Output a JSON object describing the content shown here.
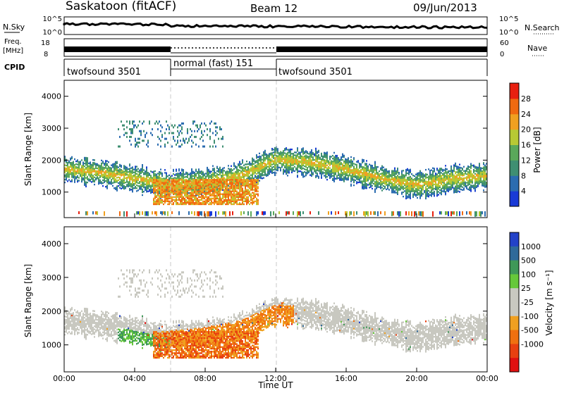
{
  "header": {
    "station": "Saskatoon (fitACF)",
    "beam": "Beam 12",
    "date": "09/Jun/2013"
  },
  "summary": {
    "left_labels": {
      "nsky": "N.Sky",
      "freq_line1": "Freq.",
      "freq_line2": "[MHz]",
      "cpid": "CPID"
    },
    "right_labels": {
      "nsearch": "N.Search",
      "nave": "Nave"
    },
    "nsky_ticks": [
      "10^5",
      "10^0"
    ],
    "nsearch_ticks": [
      "10^5",
      "10^0"
    ],
    "freq_ticks": [
      "18",
      "8"
    ],
    "nave_ticks": [
      "60",
      "0"
    ],
    "cpid_segments": [
      {
        "label": "twofsound 3501",
        "start_hour": 0,
        "end_hour": 6
      },
      {
        "label": "normal (fast) 151",
        "start_hour": 6,
        "end_hour": 12
      },
      {
        "label": "twofsound 3501",
        "start_hour": 12,
        "end_hour": 24
      }
    ]
  },
  "axes": {
    "ylabel": "Slant Range [km]",
    "xlabel": "Time UT",
    "x_ticks": [
      "00:00",
      "04:00",
      "08:00",
      "12:00",
      "16:00",
      "20:00",
      "00:00"
    ],
    "y_ticks": [
      "1000",
      "2000",
      "3000",
      "4000"
    ]
  },
  "colorbars": {
    "power": {
      "label": "Power [dB]",
      "ticks": [
        "4",
        "8",
        "12",
        "16",
        "20",
        "24",
        "28"
      ]
    },
    "velocity": {
      "label": "Velocity [m s⁻¹]",
      "ticks": [
        "1000",
        "500",
        "100",
        "25",
        "-25",
        "-100",
        "-500",
        "-1000"
      ]
    }
  },
  "colors": {
    "power_scale": [
      "#1a3ad6",
      "#2b6cb0",
      "#3f8f72",
      "#5aa85a",
      "#b7c934",
      "#f0a020",
      "#f06a10",
      "#e82010"
    ],
    "velocity_scale": [
      "#2342c8",
      "#2f6a9a",
      "#3f9858",
      "#66c83a",
      "#c8c8c0",
      "#c8c8c0",
      "#f0a020",
      "#f07010",
      "#e84010",
      "#e01010"
    ],
    "mode_boundary": "#c8c8c8"
  },
  "chart_data": [
    {
      "type": "heatmap",
      "title": "Power",
      "x_unit": "hours UT",
      "y_unit": "km",
      "xlim": [
        0,
        24
      ],
      "ylim": [
        200,
        4500
      ],
      "colorbar_range_db": [
        0,
        32
      ],
      "features": [
        {
          "name": "main scatter band",
          "hours": [
            0,
            24
          ],
          "center_km": [
            1700,
            1600,
            1400,
            1200,
            1300,
            1500,
            2000,
            1900,
            1700,
            1400,
            1200,
            1400,
            1500
          ],
          "width_km": 350,
          "power_db": 16
        },
        {
          "name": "strong low-range echoes",
          "hours": [
            5,
            11
          ],
          "center_km": 1000,
          "width_km": 400,
          "power_db": 28
        },
        {
          "name": "high range scatter",
          "hours": [
            3,
            9
          ],
          "center_km": 2800,
          "width_km": 400,
          "power_db": 6
        }
      ]
    },
    {
      "type": "heatmap",
      "title": "Velocity",
      "x_unit": "hours UT",
      "y_unit": "km",
      "xlim": [
        0,
        24
      ],
      "ylim": [
        200,
        4500
      ],
      "colorbar_range_ms": [
        -1000,
        1000
      ],
      "features": [
        {
          "name": "ground/low-velocity scatter",
          "hours": [
            0,
            24
          ],
          "center_km": 1600,
          "width_km": 500,
          "velocity_ms": 0
        },
        {
          "name": "positive velocity region",
          "hours": [
            3,
            6
          ],
          "center_km": 1200,
          "width_km": 400,
          "velocity_ms": 150
        },
        {
          "name": "negative velocity region",
          "hours": [
            6,
            13
          ],
          "center_km": 1200,
          "width_km": 600,
          "velocity_ms": -250
        }
      ]
    }
  ]
}
